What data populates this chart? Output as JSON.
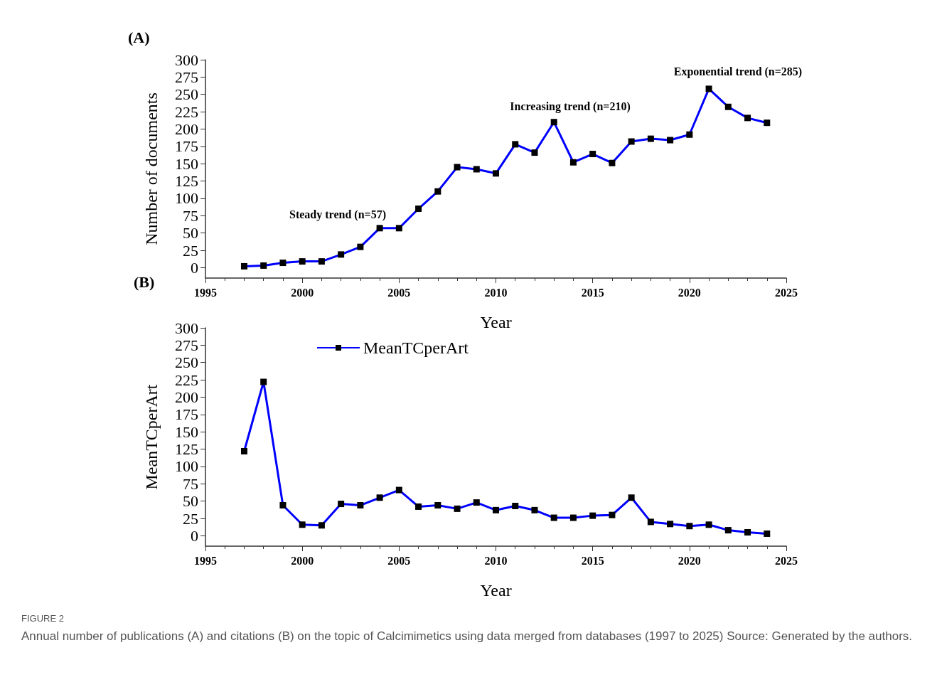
{
  "chart_data": [
    {
      "type": "line",
      "title": "(A)",
      "xlabel": "Year",
      "ylabel": "Number of documents",
      "x": [
        1997,
        1998,
        1999,
        2000,
        2001,
        2002,
        2003,
        2004,
        2005,
        2006,
        2007,
        2008,
        2009,
        2010,
        2011,
        2012,
        2013,
        2014,
        2015,
        2016,
        2017,
        2018,
        2019,
        2020,
        2021,
        2022,
        2023,
        2024
      ],
      "series": [
        {
          "color": "#0000ff",
          "values": [
            2,
            3,
            7,
            9,
            9,
            19,
            30,
            57,
            57,
            85,
            110,
            145,
            142,
            136,
            178,
            166,
            210,
            152,
            164,
            151,
            182,
            186,
            184,
            192,
            258,
            232,
            216,
            209
          ]
        }
      ],
      "xlim": [
        1995,
        2025
      ],
      "xticks": [
        1995,
        2000,
        2005,
        2010,
        2015,
        2020,
        2025
      ],
      "ylim": [
        -15,
        300
      ],
      "yticks": [
        0,
        25,
        50,
        75,
        100,
        125,
        150,
        175,
        200,
        225,
        250,
        275,
        300
      ],
      "marker": "square",
      "line_style": "solid",
      "grid": false,
      "legend": false,
      "annotations": [
        "Steady trend (n=57)",
        "Increasing trend (n=210)",
        "Exponential trend (n=285)"
      ]
    },
    {
      "type": "line",
      "title": "(B)",
      "xlabel": "Year",
      "ylabel": "MeanTCperArt",
      "x": [
        1997,
        1998,
        1999,
        2000,
        2001,
        2002,
        2003,
        2004,
        2005,
        2006,
        2007,
        2008,
        2009,
        2010,
        2011,
        2012,
        2013,
        2014,
        2015,
        2016,
        2017,
        2018,
        2019,
        2020,
        2021,
        2022,
        2023,
        2024
      ],
      "series": [
        {
          "name": "MeanTCperArt",
          "color": "#0000ff",
          "values": [
            122,
            222,
            44,
            16,
            15,
            46,
            44,
            55,
            66,
            42,
            44,
            39,
            48,
            37,
            43,
            37,
            26,
            26,
            29,
            30,
            55,
            20,
            17,
            14,
            16,
            8,
            5,
            3
          ]
        }
      ],
      "xlim": [
        1995,
        2025
      ],
      "xticks": [
        1995,
        2000,
        2005,
        2010,
        2015,
        2020,
        2025
      ],
      "ylim": [
        -15,
        300
      ],
      "yticks": [
        0,
        25,
        50,
        75,
        100,
        125,
        150,
        175,
        200,
        225,
        250,
        275,
        300
      ],
      "marker": "square",
      "line_style": "solid",
      "grid": false,
      "legend": "top left",
      "annotations": [
        "FIGURE 2",
        "Annual number of publications (A) and citations (B) on the topic of Calcimimetics using data merged from databases (1997 to 2025) Source: Generated by the authors."
      ]
    }
  ]
}
